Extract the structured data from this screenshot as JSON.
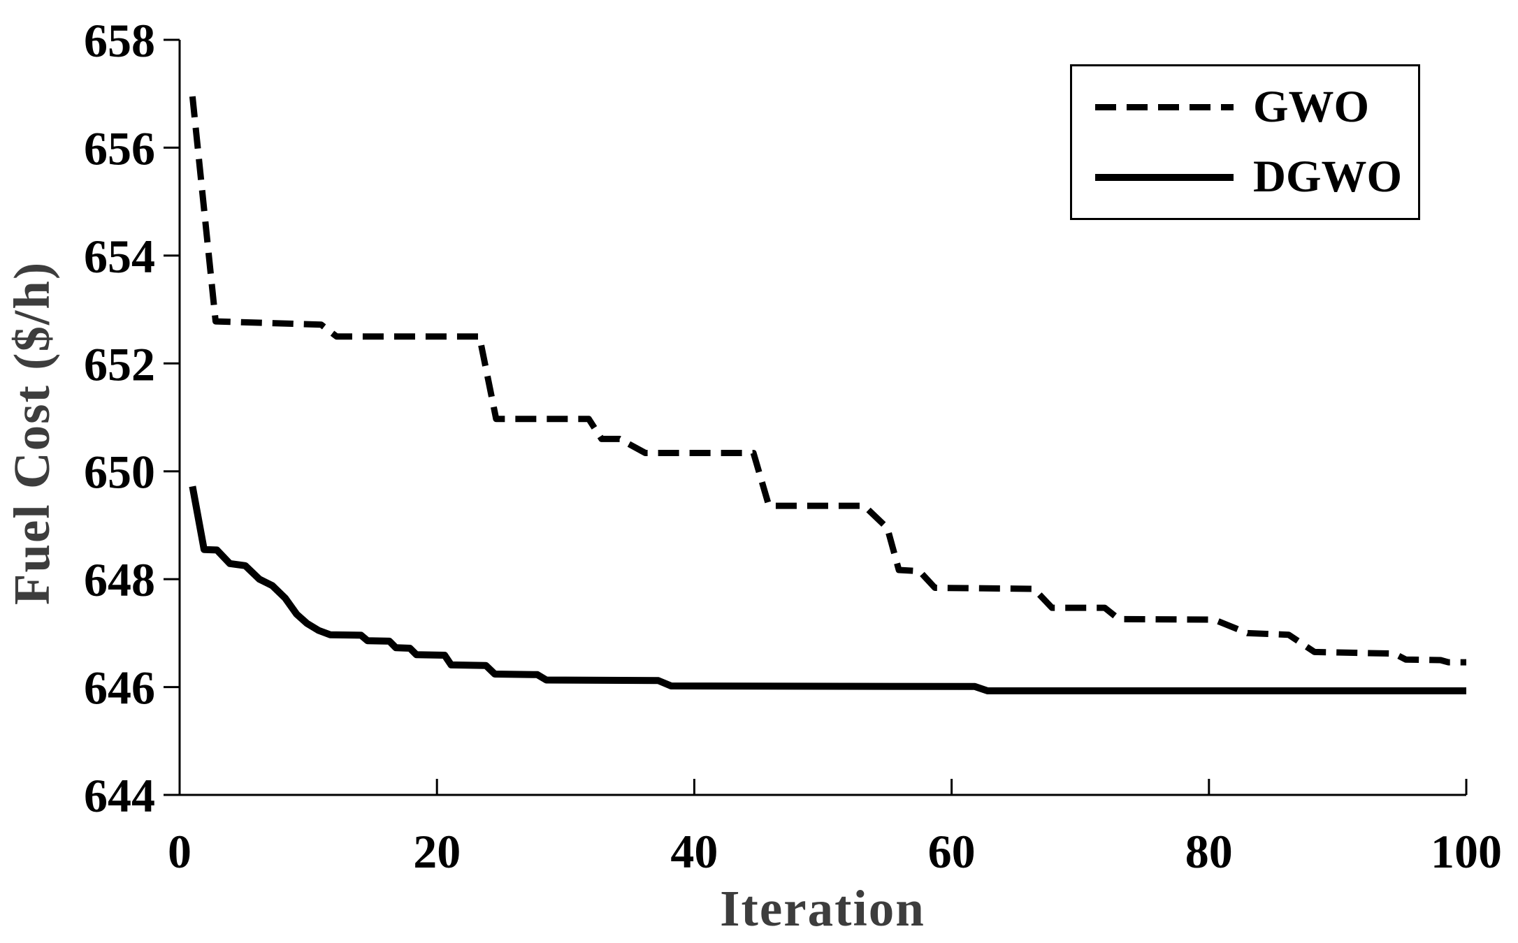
{
  "figure": {
    "background": "#ffffff",
    "axis_color": "#000000",
    "tick_label_color": "#000000",
    "axis_label_color": "#3d3d3d"
  },
  "chart_data": {
    "type": "line",
    "title": "",
    "xlabel": "Iteration",
    "ylabel": "Fuel Cost ($/h)",
    "xlim": [
      0,
      100
    ],
    "ylim": [
      644,
      658
    ],
    "xticks": [
      0,
      20,
      40,
      60,
      80,
      100
    ],
    "yticks": [
      644,
      646,
      648,
      650,
      652,
      654,
      656,
      658
    ],
    "grid": false,
    "legend_position": "top-right",
    "series": [
      {
        "name": "GWO",
        "style": "dashed",
        "color": "#000000",
        "points": [
          [
            1,
            656.95
          ],
          [
            2.8,
            652.78
          ],
          [
            11,
            652.72
          ],
          [
            12.2,
            652.5
          ],
          [
            23.3,
            652.5
          ],
          [
            24.6,
            650.97
          ],
          [
            31.8,
            650.97
          ],
          [
            32.8,
            650.6
          ],
          [
            34.2,
            650.6
          ],
          [
            36.2,
            650.34
          ],
          [
            44.6,
            650.34
          ],
          [
            45.8,
            649.36
          ],
          [
            53.2,
            649.36
          ],
          [
            55,
            648.95
          ],
          [
            55.9,
            648.17
          ],
          [
            57.5,
            648.15
          ],
          [
            58.7,
            647.84
          ],
          [
            66.4,
            647.82
          ],
          [
            67.8,
            647.47
          ],
          [
            71.9,
            647.47
          ],
          [
            73,
            647.26
          ],
          [
            80.4,
            647.25
          ],
          [
            83,
            647.0
          ],
          [
            86.2,
            646.97
          ],
          [
            88.2,
            646.65
          ],
          [
            94.4,
            646.62
          ],
          [
            95.3,
            646.51
          ],
          [
            98,
            646.5
          ],
          [
            98.6,
            646.46
          ],
          [
            100,
            646.46
          ]
        ]
      },
      {
        "name": "DGWO",
        "style": "solid",
        "color": "#000000",
        "points": [
          [
            1,
            649.72
          ],
          [
            1.9,
            648.55
          ],
          [
            2.9,
            648.54
          ],
          [
            3.9,
            648.29
          ],
          [
            5.1,
            648.25
          ],
          [
            6.2,
            648.0
          ],
          [
            7.2,
            647.88
          ],
          [
            8.2,
            647.65
          ],
          [
            9.1,
            647.35
          ],
          [
            9.9,
            647.18
          ],
          [
            10.8,
            647.05
          ],
          [
            11.7,
            646.97
          ],
          [
            14.1,
            646.96
          ],
          [
            14.6,
            646.86
          ],
          [
            16.3,
            646.85
          ],
          [
            16.8,
            646.73
          ],
          [
            17.9,
            646.72
          ],
          [
            18.4,
            646.6
          ],
          [
            20.6,
            646.59
          ],
          [
            21.1,
            646.41
          ],
          [
            23.8,
            646.4
          ],
          [
            24.5,
            646.24
          ],
          [
            27.8,
            646.23
          ],
          [
            28.5,
            646.13
          ],
          [
            37.2,
            646.12
          ],
          [
            38.2,
            646.02
          ],
          [
            61.8,
            646.01
          ],
          [
            62.8,
            645.93
          ],
          [
            100,
            645.93
          ]
        ]
      }
    ]
  }
}
